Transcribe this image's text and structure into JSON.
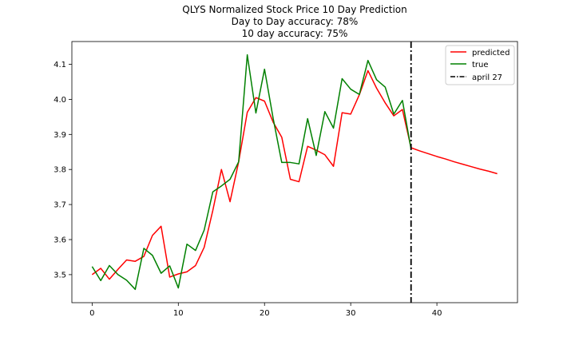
{
  "chart_data": {
    "type": "line",
    "title": [
      "QLYS Normalized Stock Price 10 Day Prediction",
      "Day to Day accuracy: 78%",
      "10 day accuracy: 75%"
    ],
    "xlabel": "",
    "ylabel": "",
    "xlim": [
      -2.35,
      49.35
    ],
    "ylim": [
      3.42,
      4.165
    ],
    "x_ticks": [
      0,
      10,
      20,
      30,
      40
    ],
    "y_ticks": [
      3.5,
      3.6,
      3.7,
      3.8,
      3.9,
      4.0,
      4.1
    ],
    "grid": false,
    "legend": {
      "placement": "top-right",
      "entries": [
        "predicted",
        "true",
        "april 27"
      ]
    },
    "series": [
      {
        "name": "predicted",
        "color": "#ff0000",
        "x": [
          0,
          1,
          2,
          3,
          4,
          5,
          6,
          7,
          8,
          9,
          10,
          11,
          12,
          13,
          14,
          15,
          16,
          17,
          18,
          19,
          20,
          21,
          22,
          23,
          24,
          25,
          26,
          27,
          28,
          29,
          30,
          31,
          32,
          33,
          34,
          35,
          36,
          37,
          38,
          39,
          40,
          41,
          42,
          43,
          44,
          45,
          46,
          47
        ],
        "y": [
          3.5,
          3.518,
          3.487,
          3.515,
          3.542,
          3.538,
          3.552,
          3.612,
          3.638,
          3.493,
          3.502,
          3.508,
          3.526,
          3.578,
          3.683,
          3.8,
          3.708,
          3.822,
          3.963,
          4.005,
          3.995,
          3.935,
          3.892,
          3.772,
          3.765,
          3.866,
          3.855,
          3.842,
          3.809,
          3.962,
          3.958,
          4.013,
          4.082,
          4.032,
          3.99,
          3.953,
          3.971,
          3.862,
          3.853,
          3.845,
          3.837,
          3.83,
          3.822,
          3.815,
          3.808,
          3.801,
          3.795,
          3.788
        ]
      },
      {
        "name": "true",
        "color": "#008000",
        "x": [
          0,
          1,
          2,
          3,
          4,
          5,
          6,
          7,
          8,
          9,
          10,
          11,
          12,
          13,
          14,
          15,
          16,
          17,
          18,
          19,
          20,
          21,
          22,
          23,
          24,
          25,
          26,
          27,
          28,
          29,
          30,
          31,
          32,
          33,
          34,
          35,
          36,
          37
        ],
        "y": [
          3.523,
          3.483,
          3.526,
          3.5,
          3.484,
          3.458,
          3.575,
          3.555,
          3.504,
          3.525,
          3.462,
          3.587,
          3.569,
          3.627,
          3.736,
          3.753,
          3.772,
          3.822,
          4.127,
          3.961,
          4.086,
          3.946,
          3.82,
          3.82,
          3.816,
          3.945,
          3.84,
          3.965,
          3.918,
          4.059,
          4.029,
          4.014,
          4.111,
          4.056,
          4.035,
          3.958,
          3.997,
          3.858
        ]
      }
    ],
    "vline": {
      "name": "april 27",
      "x": 37,
      "color": "#000000",
      "style": "dash-dot"
    }
  }
}
